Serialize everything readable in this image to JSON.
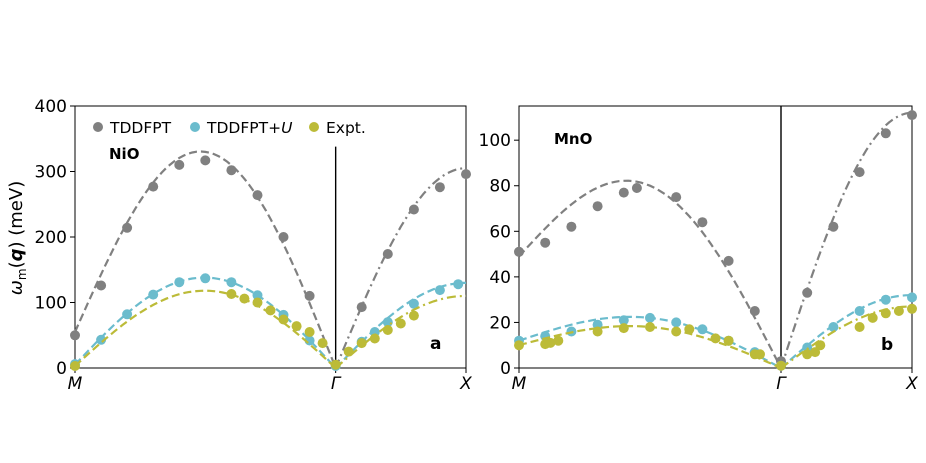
{
  "colors": {
    "tddfpt": "#808080",
    "tddfpt_u": "#6bbccd",
    "expt": "#bcbb38"
  },
  "ylabel": "ω_m(q) (meV)",
  "legend": [
    {
      "key": "tddfpt",
      "label": "TDDFPT",
      "italic_suffix": ""
    },
    {
      "key": "tddfpt_u",
      "label": "TDDFPT+",
      "italic_suffix": "U"
    },
    {
      "key": "expt",
      "label": "Expt.",
      "italic_suffix": ""
    }
  ],
  "chart_data": [
    {
      "type": "scatter",
      "panel": "a",
      "material": "NiO",
      "xticks": [
        "M",
        "Γ",
        "X"
      ],
      "xlim": [
        0,
        1.5
      ],
      "ylim": [
        0,
        400
      ],
      "yticks": [
        0,
        100,
        200,
        300,
        400
      ],
      "grid": false,
      "legend_position": "top",
      "gamma_line": {
        "x": 1.0,
        "y_top": 338
      },
      "series": [
        {
          "name": "TDDFPT",
          "key": "tddfpt",
          "linestyle_left": "dashed",
          "linestyle_right": "dashdot",
          "points": [
            [
              0,
              50
            ],
            [
              0.1,
              126
            ],
            [
              0.2,
              214
            ],
            [
              0.3,
              277
            ],
            [
              0.4,
              310
            ],
            [
              0.5,
              317
            ],
            [
              0.6,
              302
            ],
            [
              0.7,
              264
            ],
            [
              0.8,
              200
            ],
            [
              0.9,
              110
            ],
            [
              1.0,
              5
            ],
            [
              1.1,
              93
            ],
            [
              1.2,
              174
            ],
            [
              1.3,
              242
            ],
            [
              1.4,
              276
            ],
            [
              1.5,
              296
            ]
          ],
          "curve_left": {
            "x0": 0,
            "x1": 1.0,
            "peak": 330,
            "start": 55
          },
          "curve_right": {
            "x0": 1.0,
            "x1": 1.5,
            "end": 305
          }
        },
        {
          "name": "TDDFPT+U",
          "key": "tddfpt_u",
          "linestyle_left": "dashed",
          "linestyle_right": "dashed",
          "points": [
            [
              0,
              6
            ],
            [
              0.1,
              43
            ],
            [
              0.2,
              82
            ],
            [
              0.3,
              112
            ],
            [
              0.4,
              131
            ],
            [
              0.5,
              137
            ],
            [
              0.6,
              131
            ],
            [
              0.7,
              111
            ],
            [
              0.8,
              81
            ],
            [
              0.9,
              42
            ],
            [
              1.0,
              3
            ],
            [
              1.1,
              40
            ],
            [
              1.15,
              55
            ],
            [
              1.2,
              70
            ],
            [
              1.3,
              98
            ],
            [
              1.4,
              119
            ],
            [
              1.47,
              128
            ]
          ],
          "curve_left": {
            "x0": 0,
            "x1": 1.0,
            "peak": 138,
            "start": 5
          },
          "curve_right": {
            "x0": 1.0,
            "x1": 1.5,
            "end": 130
          }
        },
        {
          "name": "Expt.",
          "key": "expt",
          "linestyle_left": "dashed",
          "linestyle_right": "dashdot",
          "points": [
            [
              0,
              3
            ],
            [
              0.6,
              113
            ],
            [
              0.65,
              106
            ],
            [
              0.7,
              100
            ],
            [
              0.75,
              88
            ],
            [
              0.8,
              74
            ],
            [
              0.85,
              64
            ],
            [
              0.9,
              55
            ],
            [
              0.95,
              38
            ],
            [
              1.0,
              5
            ],
            [
              1.05,
              25
            ],
            [
              1.1,
              38
            ],
            [
              1.15,
              45
            ],
            [
              1.2,
              58
            ],
            [
              1.25,
              68
            ],
            [
              1.3,
              80
            ]
          ],
          "curve_left": {
            "x0": 0,
            "x1": 1.0,
            "peak": 118,
            "start": 3
          },
          "curve_right": {
            "x0": 1.0,
            "x1": 1.5,
            "end": 110
          }
        }
      ]
    },
    {
      "type": "scatter",
      "panel": "b",
      "material": "MnO",
      "xticks": [
        "M",
        "Γ",
        "X"
      ],
      "xlim": [
        0,
        1.5
      ],
      "ylim": [
        0,
        115
      ],
      "yticks": [
        0,
        20,
        40,
        60,
        80,
        100
      ],
      "grid": false,
      "gamma_line": {
        "x": 1.0,
        "y_top": 115
      },
      "series": [
        {
          "name": "TDDFPT",
          "key": "tddfpt",
          "linestyle_left": "dashed",
          "linestyle_right": "dashdot",
          "points": [
            [
              0,
              51
            ],
            [
              0.1,
              55
            ],
            [
              0.2,
              62
            ],
            [
              0.3,
              71
            ],
            [
              0.4,
              77
            ],
            [
              0.45,
              79
            ],
            [
              0.6,
              75
            ],
            [
              0.7,
              64
            ],
            [
              0.8,
              47
            ],
            [
              0.9,
              25
            ],
            [
              1.0,
              3
            ],
            [
              1.1,
              33
            ],
            [
              1.2,
              62
            ],
            [
              1.3,
              86
            ],
            [
              1.4,
              103
            ],
            [
              1.5,
              111
            ]
          ],
          "curve_left": {
            "x0": 0,
            "x1": 1.0,
            "peak": 80,
            "start": 49
          },
          "curve_right": {
            "x0": 1.0,
            "x1": 1.5,
            "end": 112
          }
        },
        {
          "name": "TDDFPT+U",
          "key": "tddfpt_u",
          "linestyle_left": "dashed",
          "linestyle_right": "dashed",
          "points": [
            [
              0,
              12
            ],
            [
              0.1,
              14
            ],
            [
              0.2,
              16
            ],
            [
              0.3,
              19
            ],
            [
              0.4,
              21
            ],
            [
              0.5,
              22
            ],
            [
              0.6,
              20
            ],
            [
              0.7,
              17
            ],
            [
              0.8,
              12
            ],
            [
              0.9,
              7
            ],
            [
              1.0,
              1
            ],
            [
              1.1,
              9
            ],
            [
              1.2,
              18
            ],
            [
              1.3,
              25
            ],
            [
              1.4,
              30
            ],
            [
              1.5,
              31
            ]
          ],
          "curve_left": {
            "x0": 0,
            "x1": 1.0,
            "peak": 22,
            "start": 12
          },
          "curve_right": {
            "x0": 1.0,
            "x1": 1.5,
            "end": 32
          }
        },
        {
          "name": "Expt.",
          "key": "expt",
          "linestyle_left": "dashed",
          "linestyle_right": "dashdot",
          "points": [
            [
              0,
              10
            ],
            [
              0.1,
              10.5
            ],
            [
              0.12,
              11
            ],
            [
              0.15,
              12
            ],
            [
              0.3,
              16
            ],
            [
              0.4,
              17.5
            ],
            [
              0.5,
              18
            ],
            [
              0.6,
              16
            ],
            [
              0.65,
              17
            ],
            [
              0.75,
              13
            ],
            [
              0.8,
              12
            ],
            [
              0.9,
              6
            ],
            [
              0.92,
              6
            ],
            [
              1.0,
              1
            ],
            [
              1.1,
              6
            ],
            [
              1.13,
              7
            ],
            [
              1.15,
              10
            ],
            [
              1.3,
              18
            ],
            [
              1.35,
              22
            ],
            [
              1.4,
              24
            ],
            [
              1.45,
              25
            ],
            [
              1.5,
              26
            ]
          ],
          "curve_left": {
            "x0": 0,
            "x1": 1.0,
            "peak": 18,
            "start": 10
          },
          "curve_right": {
            "x0": 1.0,
            "x1": 1.5,
            "end": 27
          }
        }
      ]
    }
  ]
}
